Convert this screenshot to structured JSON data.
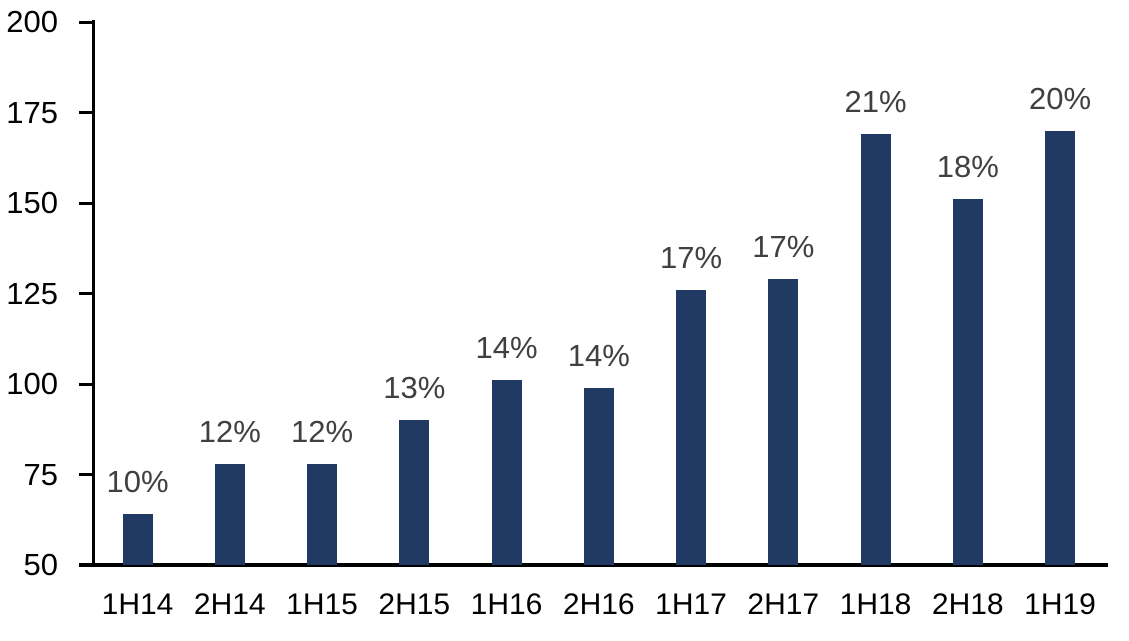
{
  "chart_data": {
    "type": "bar",
    "title": "",
    "xlabel": "",
    "ylabel": "",
    "categories": [
      "1H14",
      "2H14",
      "1H15",
      "2H15",
      "1H16",
      "2H16",
      "1H17",
      "2H17",
      "1H18",
      "2H18",
      "1H19"
    ],
    "values": [
      64,
      78,
      78,
      90,
      101,
      99,
      126,
      129,
      169,
      151,
      170
    ],
    "data_labels": [
      "10%",
      "12%",
      "12%",
      "13%",
      "14%",
      "14%",
      "17%",
      "17%",
      "21%",
      "18%",
      "20%"
    ],
    "yticks": [
      50,
      75,
      100,
      125,
      150,
      175,
      200
    ],
    "ylim": [
      50,
      200
    ],
    "grid": false,
    "legend": false,
    "colors": {
      "bar": "#213A63",
      "data_label": "#404040",
      "axis": "#000000",
      "tick_label": "#000000",
      "background": "#FFFFFF"
    }
  }
}
